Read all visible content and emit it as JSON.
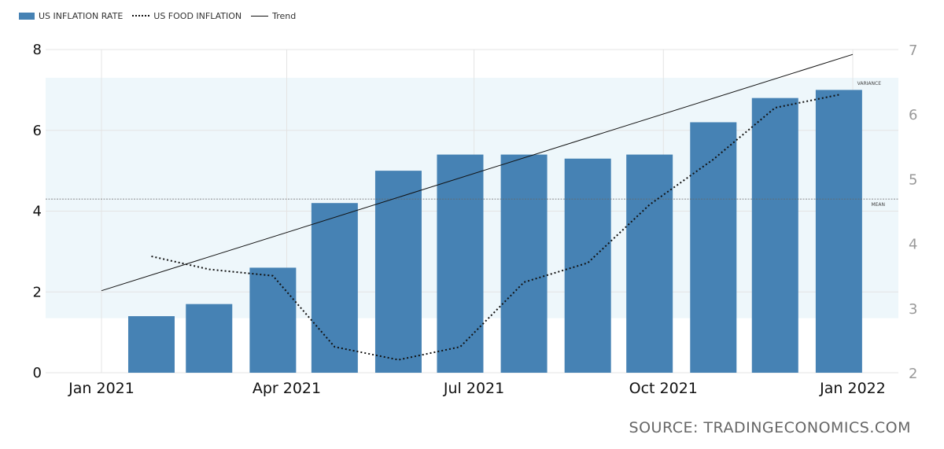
{
  "legend": {
    "bar_label": "US INFLATION RATE",
    "dotted_label": "US FOOD INFLATION",
    "trend_label": "Trend"
  },
  "source": "SOURCE: TRADINGECONOMICS.COM",
  "bands": {
    "variance_label": "VARIANCE",
    "mean_label": "MEAN"
  },
  "colors": {
    "bar": "#4682b4",
    "variance_band": "#eef7fb",
    "grid": "#e4e4e4",
    "line": "#111111"
  },
  "chart_data": {
    "type": "bar",
    "x_ticks": [
      "Jan 2021",
      "Apr 2021",
      "Jul 2021",
      "Oct 2021",
      "Jan 2022"
    ],
    "y_left_ticks": [
      "0",
      "2",
      "4",
      "6",
      "8"
    ],
    "y_right_ticks": [
      "2",
      "3",
      "4",
      "5",
      "6",
      "7"
    ],
    "ylim_left": [
      0,
      8
    ],
    "ylim_right": [
      2,
      7
    ],
    "series": [
      {
        "name": "US INFLATION RATE",
        "kind": "bar",
        "axis": "left",
        "dates": [
          "2021-01-31",
          "2021-02-28",
          "2021-03-31",
          "2021-04-30",
          "2021-05-31",
          "2021-06-30",
          "2021-07-31",
          "2021-08-31",
          "2021-09-30",
          "2021-10-31",
          "2021-11-30",
          "2021-12-31"
        ],
        "values": [
          1.4,
          1.7,
          2.6,
          4.2,
          5.0,
          5.4,
          5.4,
          5.3,
          5.4,
          6.2,
          6.8,
          7.0
        ]
      },
      {
        "name": "US FOOD INFLATION",
        "kind": "dotted-line",
        "axis": "right",
        "dates": [
          "2021-01-31",
          "2021-02-28",
          "2021-03-31",
          "2021-04-30",
          "2021-05-31",
          "2021-06-30",
          "2021-07-31",
          "2021-08-31",
          "2021-09-30",
          "2021-10-31",
          "2021-11-30",
          "2021-12-31"
        ],
        "values": [
          3.8,
          3.6,
          3.5,
          2.4,
          2.2,
          2.4,
          3.4,
          3.7,
          4.6,
          5.3,
          6.1,
          6.3
        ]
      },
      {
        "name": "Trend",
        "kind": "line",
        "axis": "left",
        "dates": [
          "2021-01-01",
          "2022-01-01"
        ],
        "values": [
          2.03,
          7.88
        ]
      }
    ],
    "variance_band": [
      1.35,
      7.3
    ],
    "mean": 4.3
  }
}
